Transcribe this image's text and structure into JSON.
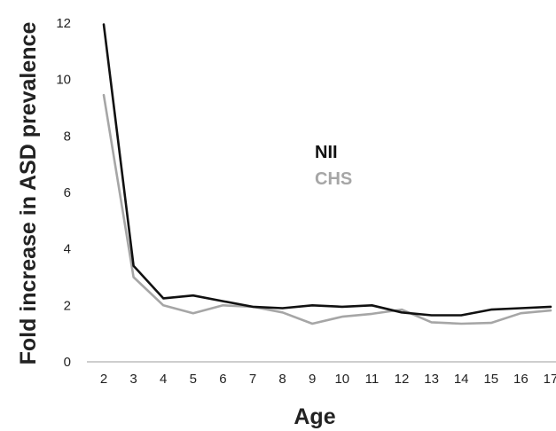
{
  "chart_data": {
    "type": "line",
    "x": [
      2,
      3,
      4,
      5,
      6,
      7,
      8,
      9,
      10,
      11,
      12,
      13,
      14,
      15,
      16,
      17
    ],
    "xlabel": "Age",
    "ylabel": "Fold increase in ASD prevalence",
    "ylim": [
      0,
      12
    ],
    "yticks": [
      0,
      2,
      4,
      6,
      8,
      10,
      12
    ],
    "grid": false,
    "legend_placement": "center-right",
    "series": [
      {
        "name": "NII",
        "color": "#111111",
        "values": [
          11.95,
          3.4,
          2.25,
          2.35,
          2.15,
          1.95,
          1.9,
          2.0,
          1.95,
          2.0,
          1.75,
          1.65,
          1.65,
          1.85,
          1.9,
          1.95
        ]
      },
      {
        "name": "CHS",
        "color": "#a6a6a6",
        "values": [
          9.45,
          3.0,
          2.0,
          1.72,
          2.0,
          1.95,
          1.75,
          1.35,
          1.6,
          1.7,
          1.85,
          1.4,
          1.35,
          1.38,
          1.72,
          1.82
        ]
      }
    ]
  }
}
